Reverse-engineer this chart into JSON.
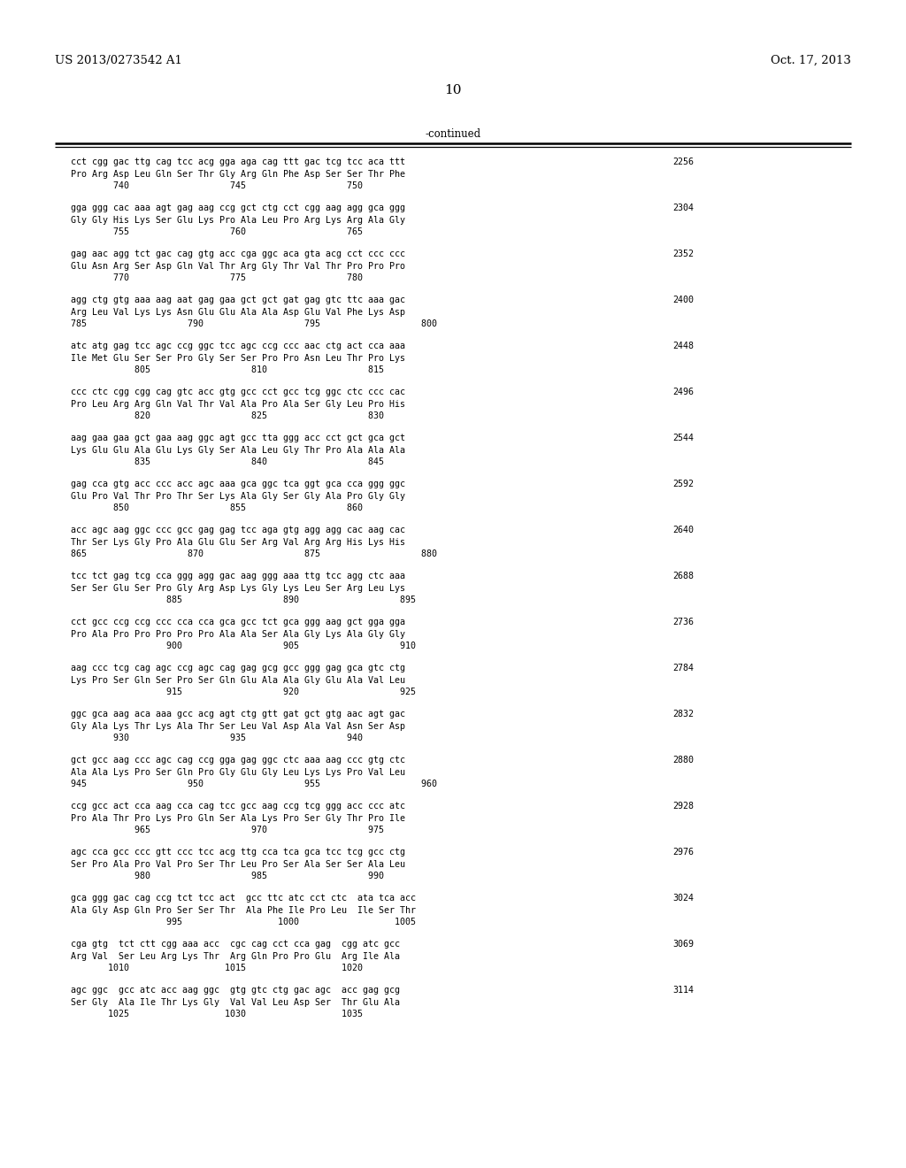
{
  "patent_number": "US 2013/0273542 A1",
  "date": "Oct. 17, 2013",
  "page_number": "10",
  "continued_label": "-continued",
  "background_color": "#ffffff",
  "text_color": "#000000",
  "sequences": [
    {
      "dna": "cct cgg gac ttg cag tcc acg gga aga cag ttt gac tcg tcc aca ttt",
      "aa": "Pro Arg Asp Leu Gln Ser Thr Gly Arg Gln Phe Asp Ser Ser Thr Phe",
      "nums": "        740                   745                   750",
      "count": "2256"
    },
    {
      "dna": "gga ggg cac aaa agt gag aag ccg gct ctg cct cgg aag agg gca ggg",
      "aa": "Gly Gly His Lys Ser Glu Lys Pro Ala Leu Pro Arg Lys Arg Ala Gly",
      "nums": "        755                   760                   765",
      "count": "2304"
    },
    {
      "dna": "gag aac agg tct gac cag gtg acc cga ggc aca gta acg cct ccc ccc",
      "aa": "Glu Asn Arg Ser Asp Gln Val Thr Arg Gly Thr Val Thr Pro Pro Pro",
      "nums": "        770                   775                   780",
      "count": "2352"
    },
    {
      "dna": "agg ctg gtg aaa aag aat gag gaa gct gct gat gag gtc ttc aaa gac",
      "aa": "Arg Leu Val Lys Lys Asn Glu Glu Ala Ala Asp Glu Val Phe Lys Asp",
      "nums": "785                   790                   795                   800",
      "count": "2400"
    },
    {
      "dna": "atc atg gag tcc agc ccg ggc tcc agc ccg ccc aac ctg act cca aaa",
      "aa": "Ile Met Glu Ser Ser Pro Gly Ser Ser Pro Pro Asn Leu Thr Pro Lys",
      "nums": "            805                   810                   815",
      "count": "2448"
    },
    {
      "dna": "ccc ctc cgg cgg cag gtc acc gtg gcc cct gcc tcg ggc ctc ccc cac",
      "aa": "Pro Leu Arg Arg Gln Val Thr Val Ala Pro Ala Ser Gly Leu Pro His",
      "nums": "            820                   825                   830",
      "count": "2496"
    },
    {
      "dna": "aag gaa gaa gct gaa aag ggc agt gcc tta ggg acc cct gct gca gct",
      "aa": "Lys Glu Glu Ala Glu Lys Gly Ser Ala Leu Gly Thr Pro Ala Ala Ala",
      "nums": "            835                   840                   845",
      "count": "2544"
    },
    {
      "dna": "gag cca gtg acc ccc acc agc aaa gca ggc tca ggt gca cca ggg ggc",
      "aa": "Glu Pro Val Thr Pro Thr Ser Lys Ala Gly Ser Gly Ala Pro Gly Gly",
      "nums": "        850                   855                   860",
      "count": "2592"
    },
    {
      "dna": "acc agc aag ggc ccc gcc gag gag tcc aga gtg agg agg cac aag cac",
      "aa": "Thr Ser Lys Gly Pro Ala Glu Glu Ser Arg Val Arg Arg His Lys His",
      "nums": "865                   870                   875                   880",
      "count": "2640"
    },
    {
      "dna": "tcc tct gag tcg cca ggg agg gac aag ggg aaa ttg tcc agg ctc aaa",
      "aa": "Ser Ser Glu Ser Pro Gly Arg Asp Lys Gly Lys Leu Ser Arg Leu Lys",
      "nums": "                  885                   890                   895",
      "count": "2688"
    },
    {
      "dna": "cct gcc ccg ccg ccc cca cca gca gcc tct gca ggg aag gct gga gga",
      "aa": "Pro Ala Pro Pro Pro Pro Pro Ala Ala Ser Ala Gly Lys Ala Gly Gly",
      "nums": "                  900                   905                   910",
      "count": "2736"
    },
    {
      "dna": "aag ccc tcg cag agc ccg agc cag gag gcg gcc ggg gag gca gtc ctg",
      "aa": "Lys Pro Ser Gln Ser Pro Ser Gln Glu Ala Ala Gly Glu Ala Val Leu",
      "nums": "                  915                   920                   925",
      "count": "2784"
    },
    {
      "dna": "ggc gca aag aca aaa gcc acg agt ctg gtt gat gct gtg aac agt gac",
      "aa": "Gly Ala Lys Thr Lys Ala Thr Ser Leu Val Asp Ala Val Asn Ser Asp",
      "nums": "        930                   935                   940",
      "count": "2832"
    },
    {
      "dna": "gct gcc aag ccc agc cag ccg gga gag ggc ctc aaa aag ccc gtg ctc",
      "aa": "Ala Ala Lys Pro Ser Gln Pro Gly Glu Gly Leu Lys Lys Pro Val Leu",
      "nums": "945                   950                   955                   960",
      "count": "2880"
    },
    {
      "dna": "ccg gcc act cca aag cca cag tcc gcc aag ccg tcg ggg acc ccc atc",
      "aa": "Pro Ala Thr Pro Lys Pro Gln Ser Ala Lys Pro Ser Gly Thr Pro Ile",
      "nums": "            965                   970                   975",
      "count": "2928"
    },
    {
      "dna": "agc cca gcc ccc gtt ccc tcc acg ttg cca tca gca tcc tcg gcc ctg",
      "aa": "Ser Pro Ala Pro Val Pro Ser Thr Leu Pro Ser Ala Ser Ser Ala Leu",
      "nums": "            980                   985                   990",
      "count": "2976"
    },
    {
      "dna": "gca ggg gac cag ccg tct tcc act  gcc ttc atc cct ctc  ata tca acc",
      "aa": "Ala Gly Asp Gln Pro Ser Ser Thr  Ala Phe Ile Pro Leu  Ile Ser Thr",
      "nums": "                  995                  1000                  1005",
      "count": "3024"
    },
    {
      "dna": "cga gtg  tct ctt cgg aaa acc  cgc cag cct cca gag  cgg atc gcc",
      "aa": "Arg Val  Ser Leu Arg Lys Thr  Arg Gln Pro Pro Glu  Arg Ile Ala",
      "nums": "       1010                  1015                  1020",
      "count": "3069"
    },
    {
      "dna": "agc ggc  gcc atc acc aag ggc  gtg gtc ctg gac agc  acc gag gcg",
      "aa": "Ser Gly  Ala Ile Thr Lys Gly  Val Val Leu Asp Ser  Thr Glu Ala",
      "nums": "       1025                  1030                  1035",
      "count": "3114"
    }
  ]
}
